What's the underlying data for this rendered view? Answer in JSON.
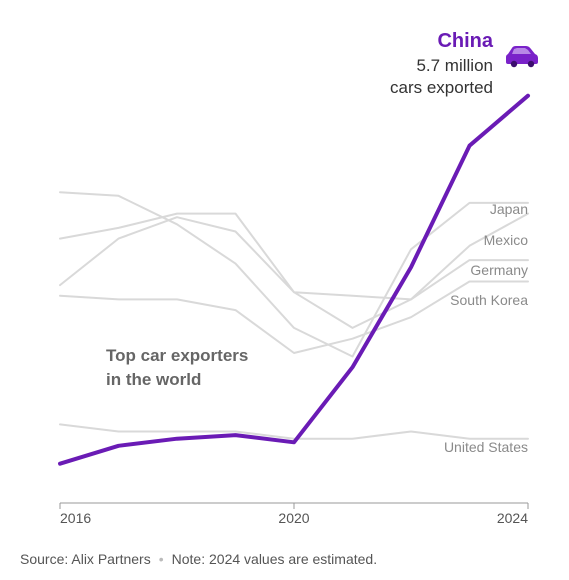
{
  "chart_data": {
    "type": "line",
    "title": "Top car exporters in the world",
    "x_ticks": [
      2016,
      2020,
      2024
    ],
    "xlim": [
      2016,
      2024
    ],
    "ylim": [
      0,
      6.2
    ],
    "y_unit": "million cars exported",
    "grid": false,
    "series": [
      {
        "name": "China",
        "highlight": true,
        "color": "#6a1bb5",
        "x": [
          2016,
          2017,
          2018,
          2019,
          2020,
          2021,
          2022,
          2023,
          2024
        ],
        "values": [
          0.55,
          0.8,
          0.9,
          0.95,
          0.85,
          1.9,
          3.3,
          5.0,
          5.7
        ]
      },
      {
        "name": "Japan",
        "color": "#d9d9d9",
        "x": [
          2016,
          2017,
          2018,
          2019,
          2020,
          2021,
          2022,
          2023,
          2024
        ],
        "values": [
          4.35,
          4.3,
          3.9,
          3.35,
          2.45,
          2.05,
          3.55,
          4.2,
          4.2
        ]
      },
      {
        "name": "Mexico",
        "color": "#d9d9d9",
        "x": [
          2016,
          2017,
          2018,
          2019,
          2020,
          2021,
          2022,
          2023,
          2024
        ],
        "values": [
          3.7,
          3.85,
          4.05,
          4.05,
          2.95,
          2.9,
          2.85,
          3.6,
          4.05
        ]
      },
      {
        "name": "Germany",
        "color": "#d9d9d9",
        "x": [
          2016,
          2017,
          2018,
          2019,
          2020,
          2021,
          2022,
          2023,
          2024
        ],
        "values": [
          3.05,
          3.7,
          4.0,
          3.8,
          2.95,
          2.45,
          2.85,
          3.4,
          3.4
        ]
      },
      {
        "name": "South Korea",
        "color": "#d9d9d9",
        "x": [
          2016,
          2017,
          2018,
          2019,
          2020,
          2021,
          2022,
          2023,
          2024
        ],
        "values": [
          2.9,
          2.85,
          2.85,
          2.7,
          2.1,
          2.3,
          2.6,
          3.1,
          3.1
        ]
      },
      {
        "name": "United States",
        "color": "#d9d9d9",
        "x": [
          2016,
          2017,
          2018,
          2019,
          2020,
          2021,
          2022,
          2023,
          2024
        ],
        "values": [
          1.1,
          1.0,
          1.0,
          1.0,
          0.9,
          0.9,
          1.0,
          0.9,
          0.9
        ]
      }
    ],
    "annotation": {
      "title": "China",
      "line1": "5.7 million",
      "line2": "cars exported"
    },
    "title_lines": [
      "Top car exporters",
      "in the world"
    ],
    "series_labels": [
      "Japan",
      "Mexico",
      "Germany",
      "South Korea",
      "United States"
    ],
    "icon": "car-icon"
  },
  "footer": {
    "source": "Source: Alix Partners",
    "note": "Note: 2024 values are estimated."
  }
}
